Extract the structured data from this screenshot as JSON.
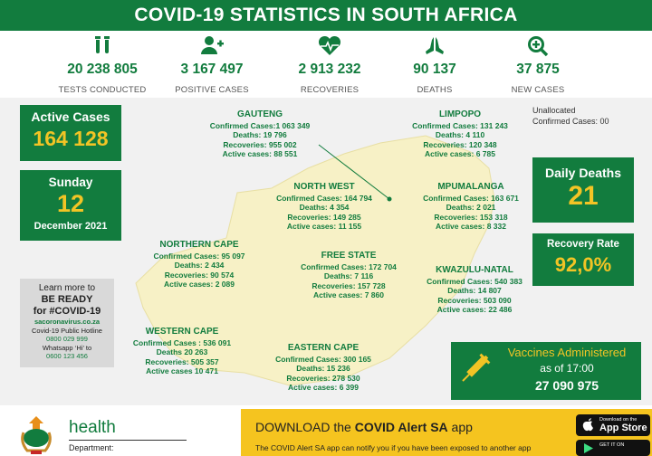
{
  "title": "COVID-19 STATISTICS IN SOUTH AFRICA",
  "colors": {
    "green": "#127c3e",
    "yellow": "#f2c425",
    "map": "#f7f1c6"
  },
  "stats": [
    {
      "icon": "test-tubes-icon",
      "value": "20 238 805",
      "label": "TESTS CONDUCTED"
    },
    {
      "icon": "add-person-icon",
      "value": "3 167 497",
      "label": "POSITIVE CASES"
    },
    {
      "icon": "heartbeat-icon",
      "value": "2 913 232",
      "label": "RECOVERIES"
    },
    {
      "icon": "praying-hands-icon",
      "value": "90 137",
      "label": "DEATHS"
    },
    {
      "icon": "zoom-plus-icon",
      "value": "37 875",
      "label": "NEW CASES"
    }
  ],
  "active_cases": {
    "label": "Active Cases",
    "value": "164 128"
  },
  "date": {
    "day": "Sunday",
    "num": "12",
    "month_year": "December 2021"
  },
  "info": {
    "l1": "Learn more to",
    "l2": "BE READY",
    "l3": "for #COVID-19",
    "site": "sacoronavirus.co.za",
    "hotline_label": "Covid-19 Public Hotline",
    "hotline": "0800 029 999",
    "whatsapp_label": "Whatsapp ‘Hi’ to",
    "whatsapp": "0600 123 456"
  },
  "unallocated": {
    "l1": "Unallocated",
    "l2": "Confirmed Cases: 00"
  },
  "daily_deaths": {
    "label": "Daily Deaths",
    "value": "21"
  },
  "recovery_rate": {
    "label": "Recovery Rate",
    "value": "92,0%"
  },
  "provinces": {
    "gauteng": {
      "name": "GAUTENG",
      "lines": [
        "Confirmed Cases:1 063 349",
        "Deaths: 19 796",
        "Recoveries: 955 002",
        "Active cases: 88 551"
      ]
    },
    "limpopo": {
      "name": "LIMPOPO",
      "lines": [
        "Confirmed Cases: 131 243",
        "Deaths:  4 110",
        "Recoveries: 120 348",
        "Active cases: 6 785"
      ]
    },
    "north_west": {
      "name": "NORTH WEST",
      "lines": [
        "Confirmed Cases: 164 794",
        "Deaths:  4 354",
        "Recoveries: 149 285",
        "Active cases: 11 155"
      ]
    },
    "mpumalanga": {
      "name": "MPUMALANGA",
      "lines": [
        "Confirmed Cases: 163 671",
        "Deaths:  2 021",
        "Recoveries: 153 318",
        "Active cases: 8 332"
      ]
    },
    "northern_cape": {
      "name": "NORTHERN CAPE",
      "lines": [
        "Confirmed Cases:  95 097",
        "Deaths: 2 434",
        "Recoveries: 90 574",
        "Active cases: 2 089"
      ]
    },
    "free_state": {
      "name": "FREE STATE",
      "lines": [
        "Confirmed Cases: 172 704",
        "Deaths: 7 116",
        "Recoveries: 157 728",
        "Active cases: 7 860"
      ]
    },
    "kwazulu_natal": {
      "name": "KWAZULU-NATAL",
      "lines": [
        "Confirmed Cases: 540 383",
        "Deaths: 14 807",
        "Recoveries: 503 090",
        "Active cases: 22 486"
      ]
    },
    "western_cape": {
      "name": "WESTERN CAPE",
      "lines": [
        "Confirmed Cases : 536 091",
        "Deaths 20 263",
        "Recoveries: 505 357",
        "Active cases 10 471"
      ]
    },
    "eastern_cape": {
      "name": "EASTERN CAPE",
      "lines": [
        "Confirmed Cases: 300 165",
        "Deaths: 15 236",
        "Recoveries: 278 530",
        "Active cases: 6 399"
      ]
    }
  },
  "vaccines": {
    "l1": "Vaccines Administered",
    "l2": "as of 17:00",
    "value": "27 090 975"
  },
  "footer": {
    "health": "health",
    "dept": "Department:",
    "app_prefix": "DOWNLOAD the ",
    "app_name": "COVID Alert SA",
    "app_suffix": " app",
    "app_sub": "The COVID Alert SA app can notify you if you have been exposed to another app",
    "appstore_small": "Download on the",
    "appstore_big": "App Store",
    "play_small": "GET IT ON"
  }
}
